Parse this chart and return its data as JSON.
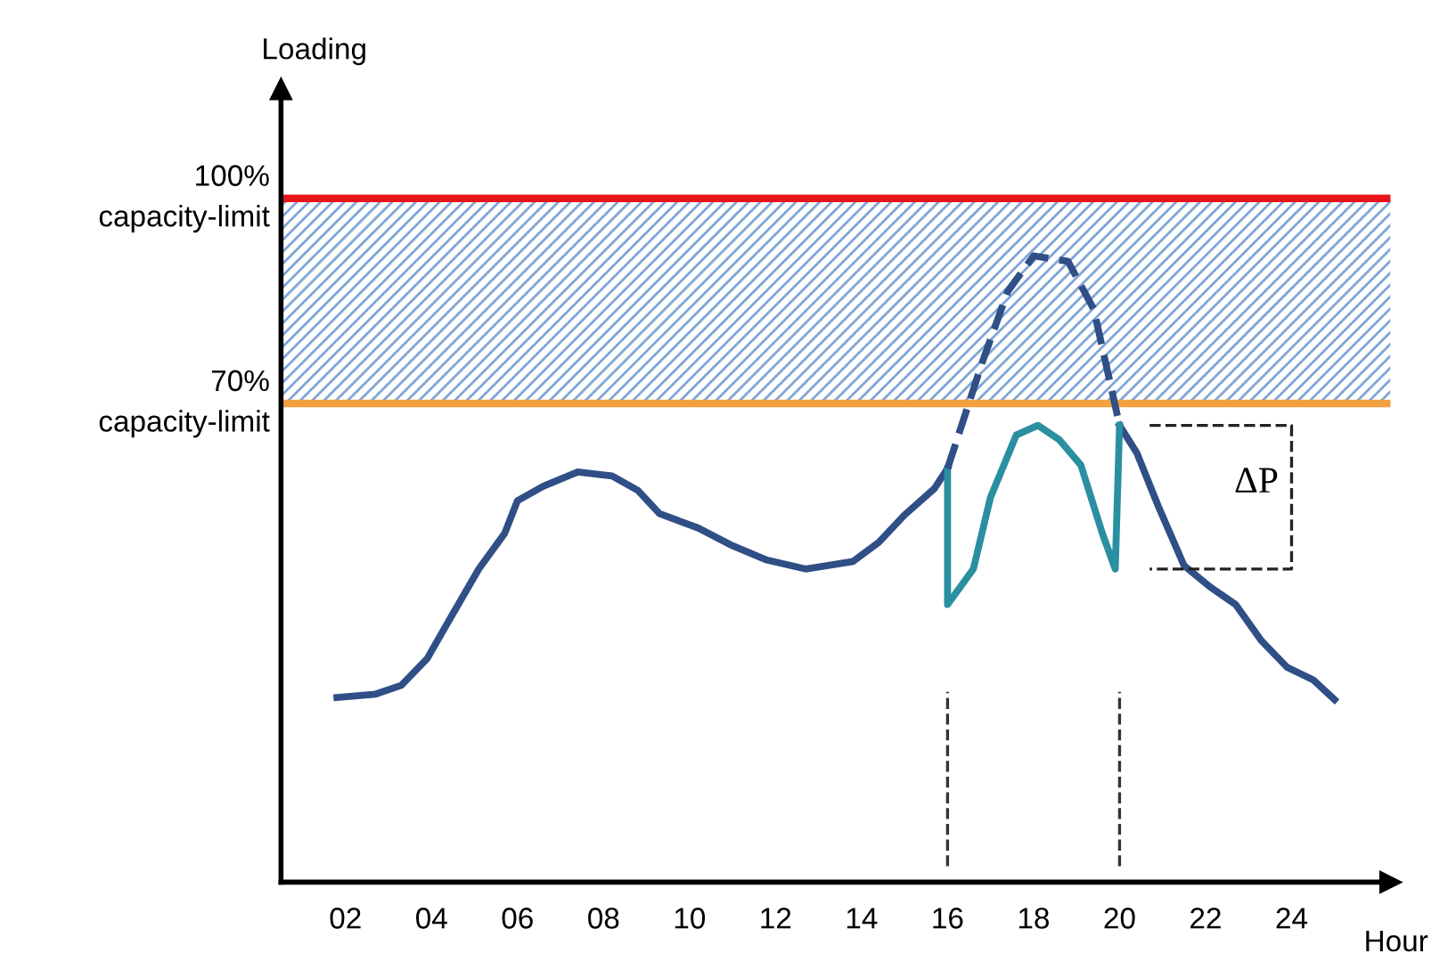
{
  "chart_data": {
    "type": "line",
    "xlabel": "Hour",
    "ylabel": "Loading",
    "xlim": [
      0.5,
      26.3
    ],
    "ylim": [
      0,
      116
    ],
    "xticks": [
      {
        "value": 2,
        "label": "02"
      },
      {
        "value": 4,
        "label": "04"
      },
      {
        "value": 6,
        "label": "06"
      },
      {
        "value": 8,
        "label": "08"
      },
      10,
      12,
      14,
      16,
      18,
      20,
      22,
      24
    ],
    "tick_labels": "x",
    "grid": false,
    "series": [
      {
        "color": "#2f4f86",
        "line_style": "solid",
        "x": [
          1.8,
          2.7,
          3.3,
          3.9,
          4.5,
          5.1,
          5.7,
          6.0,
          6.6,
          7.4,
          8.2,
          8.8,
          9.3,
          10.2,
          11.0,
          11.8,
          12.7,
          13.8,
          14.4,
          15.0,
          15.7,
          16.0,
          null,
          20.0,
          20.4,
          20.9,
          21.5,
          22.1,
          22.7,
          23.3,
          23.9,
          24.5,
          25.0
        ],
        "values": [
          27.0,
          27.5,
          28.8,
          32.7,
          39.3,
          45.8,
          51.0,
          55.8,
          57.9,
          60.0,
          59.4,
          57.3,
          53.9,
          51.8,
          49.2,
          47.1,
          45.8,
          46.9,
          49.7,
          53.7,
          57.6,
          60.5,
          null,
          66.8,
          62.8,
          55.0,
          46.3,
          43.2,
          40.6,
          35.3,
          31.4,
          29.6,
          26.7
        ]
      },
      {
        "color": "#2a8fa0",
        "line_style": "solid",
        "x": [
          16.0,
          16.0,
          16.6,
          17.0,
          17.6,
          18.1,
          18.6,
          19.1,
          19.6,
          19.9,
          20.0
        ],
        "values": [
          60.5,
          40.6,
          45.8,
          56.3,
          65.4,
          66.8,
          64.7,
          61.0,
          51.0,
          45.8,
          66.8
        ]
      },
      {
        "color": "#2f4f86",
        "line_style": "dashed",
        "x": [
          16.0,
          16.8,
          17.4,
          18.0,
          18.8,
          19.4,
          20.0
        ],
        "values": [
          60.5,
          75.9,
          86.4,
          91.6,
          90.8,
          83.8,
          66.8
        ]
      }
    ],
    "ref_lines": [
      {
        "axis": "y",
        "value": 100,
        "label": "100%\ncapacity-limit",
        "color": "#e8141b",
        "line_style": "solid"
      },
      {
        "axis": "y",
        "value": 70,
        "label": "70%\ncapacity-limit",
        "color": "#f4a041",
        "line_style": "solid"
      },
      {
        "axis": "x",
        "value": 16,
        "color": "#333333",
        "line_style": "dashed"
      },
      {
        "axis": "x",
        "value": 20,
        "color": "#333333",
        "line_style": "dashed"
      }
    ],
    "bands": [
      {
        "axis": "y",
        "from": 70,
        "to": 100,
        "color": "#7fa6d6"
      }
    ],
    "annotations": [
      "ΔP"
    ]
  }
}
